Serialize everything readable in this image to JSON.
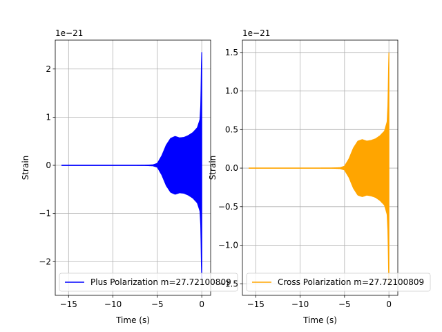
{
  "chart_data": [
    {
      "type": "line",
      "xlabel": "Time (s)",
      "ylabel": "Strain",
      "offset_text": "1e−21",
      "xlim": [
        -16.5,
        1.0
      ],
      "ylim": [
        -2.7,
        2.6
      ],
      "xticks": [
        -15,
        -10,
        -5,
        0
      ],
      "xtick_labels": [
        "−15",
        "−10",
        "−5",
        "0"
      ],
      "yticks": [
        -2,
        -1,
        0,
        1,
        2
      ],
      "ytick_labels": [
        "−2",
        "−1",
        "0",
        "1",
        "2"
      ],
      "grid": true,
      "legend_position": "lower-left",
      "color": "#0000ff",
      "series": [
        {
          "name": "Plus Polarization m=27.72100809",
          "envelope": {
            "t": [
              -15.8,
              -8.0,
              -6.5,
              -5.5,
              -5.0,
              -4.5,
              -4.0,
              -3.5,
              -3.0,
              -2.5,
              -2.0,
              -1.5,
              -1.0,
              -0.5,
              -0.2,
              -0.1,
              -0.05,
              0.0
            ],
            "amp": [
              0.0,
              0.0,
              0.002,
              0.01,
              0.04,
              0.2,
              0.42,
              0.56,
              0.6,
              0.57,
              0.58,
              0.62,
              0.68,
              0.78,
              0.95,
              1.3,
              2.0,
              2.35
            ]
          }
        }
      ]
    },
    {
      "type": "line",
      "xlabel": "Time (s)",
      "ylabel": "Strain",
      "offset_text": "1e−21",
      "xlim": [
        -16.5,
        1.0
      ],
      "ylim": [
        -1.65,
        1.66
      ],
      "xticks": [
        -15,
        -10,
        -5,
        0
      ],
      "xtick_labels": [
        "−15",
        "−10",
        "−5",
        "0"
      ],
      "yticks": [
        -1.5,
        -1.0,
        -0.5,
        0.0,
        0.5,
        1.0,
        1.5
      ],
      "ytick_labels": [
        "−1.5",
        "−1.0",
        "−0.5",
        "0.0",
        "0.5",
        "1.0",
        "1.5"
      ],
      "grid": true,
      "legend_position": "lower-left",
      "color": "#ffa500",
      "series": [
        {
          "name": "Cross Polarization m=27.72100809",
          "envelope": {
            "t": [
              -15.8,
              -8.0,
              -6.5,
              -5.5,
              -5.0,
              -4.5,
              -4.0,
              -3.5,
              -3.0,
              -2.5,
              -2.0,
              -1.5,
              -1.0,
              -0.5,
              -0.2,
              -0.1,
              -0.05,
              0.0
            ],
            "amp": [
              0.0,
              0.0,
              0.001,
              0.006,
              0.025,
              0.12,
              0.26,
              0.35,
              0.37,
              0.35,
              0.36,
              0.38,
              0.42,
              0.48,
              0.6,
              0.85,
              1.25,
              1.5
            ]
          }
        }
      ]
    }
  ]
}
